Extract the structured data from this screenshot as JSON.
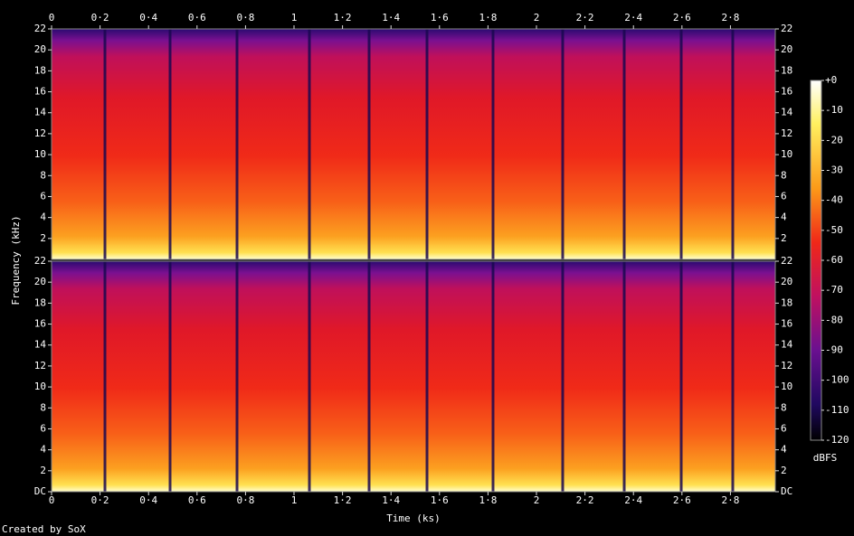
{
  "chart_data": [
    {
      "type": "spectrogram",
      "xlim": [
        0,
        2.985
      ],
      "xticks": [
        0,
        {
          "value": 0.2,
          "label": "0·2"
        },
        {
          "value": 0.4,
          "label": "0·4"
        },
        {
          "value": 0.6,
          "label": "0·6"
        },
        {
          "value": 0.8,
          "label": "0·8"
        },
        1,
        {
          "value": 1.2,
          "label": "1·2"
        },
        {
          "value": 1.4,
          "label": "1·4"
        },
        {
          "value": 1.6,
          "label": "1·6"
        },
        {
          "value": 1.8,
          "label": "1·8"
        },
        2,
        {
          "value": 2.2,
          "label": "2·2"
        },
        {
          "value": 2.4,
          "label": "2·4"
        },
        {
          "value": 2.6,
          "label": "2·6"
        },
        {
          "value": 2.8,
          "label": "2·8"
        }
      ],
      "ylim": [
        0,
        22
      ],
      "yticks": [
        2,
        4,
        6,
        8,
        10,
        12,
        14,
        16,
        18,
        20,
        22
      ],
      "ylabel": "Frequency (kHz)"
    },
    {
      "type": "spectrogram",
      "xlim": [
        0,
        2.985
      ],
      "xticks": [
        0,
        {
          "value": 0.2,
          "label": "0·2"
        },
        {
          "value": 0.4,
          "label": "0·4"
        },
        {
          "value": 0.6,
          "label": "0·6"
        },
        {
          "value": 0.8,
          "label": "0·8"
        },
        1,
        {
          "value": 1.2,
          "label": "1·2"
        },
        {
          "value": 1.4,
          "label": "1·4"
        },
        {
          "value": 1.6,
          "label": "1·6"
        },
        {
          "value": 1.8,
          "label": "1·8"
        },
        2,
        {
          "value": 2.2,
          "label": "2·2"
        },
        {
          "value": 2.4,
          "label": "2·4"
        },
        {
          "value": 2.6,
          "label": "2·6"
        },
        {
          "value": 2.8,
          "label": "2·8"
        }
      ],
      "ylim": [
        0,
        22
      ],
      "yticks": [
        {
          "value": 0,
          "label": "DC"
        },
        2,
        4,
        6,
        8,
        10,
        12,
        14,
        16,
        18,
        20,
        22
      ],
      "xlabel": "Time (ks)"
    },
    {
      "type": "colorbar",
      "label": "dBFS",
      "ylim": [
        -120,
        0
      ],
      "yticks": [
        {
          "value": 0,
          "label": "+0"
        },
        -10,
        -20,
        -30,
        -40,
        -50,
        -60,
        -70,
        -80,
        -90,
        -100,
        -110,
        -120
      ]
    }
  ],
  "footer": "Created by SoX"
}
